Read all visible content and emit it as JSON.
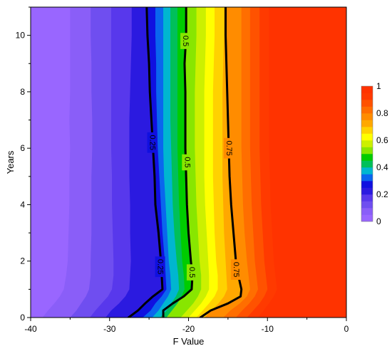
{
  "chart_data": {
    "type": "heatmap",
    "subtype": "filled-contour",
    "title": "",
    "xlabel": "F Value",
    "ylabel": "Years",
    "xlim": [
      -40,
      0
    ],
    "ylim": [
      0,
      11
    ],
    "x_ticks": [
      "-40",
      "-30",
      "-20",
      "-10",
      "0"
    ],
    "y_ticks": [
      "0",
      "2",
      "4",
      "6",
      "8",
      "10"
    ],
    "grid": false,
    "legend": {
      "placement": "right",
      "ticks": [
        "0",
        "0.2",
        "0.4",
        "0.6",
        "0.8",
        "1"
      ],
      "range": [
        0,
        1
      ]
    },
    "levels": [
      0.05,
      0.1,
      0.15,
      0.2,
      0.25,
      0.3,
      0.35,
      0.4,
      0.45,
      0.5,
      0.55,
      0.6,
      0.65,
      0.7,
      0.75,
      0.8,
      0.85,
      0.9,
      0.95
    ],
    "level_colors": [
      "#9966ff",
      "#8a5ef8",
      "#6f4ef0",
      "#5838ec",
      "#2b1ae0",
      "#1010e0",
      "#0a66ee",
      "#00b6d0",
      "#00c05a",
      "#00cc00",
      "#88e600",
      "#ccf000",
      "#ffff00",
      "#ffd200",
      "#ffa800",
      "#ff8c00",
      "#ff6e00",
      "#ff5200",
      "#ff3a00",
      "#ff3300"
    ],
    "boundaries": {
      "years": [
        0,
        0.25,
        0.5,
        0.75,
        1.0,
        1.5,
        2,
        3,
        4,
        5,
        6,
        7,
        8,
        9,
        10,
        11
      ],
      "x_by_level": [
        [
          -38.5,
          -37.8,
          -37.0,
          -36.3,
          -35.8,
          -35.5,
          -35.3,
          -35.2,
          -35.1,
          -35.1,
          -35.0,
          -35.1,
          -35.0,
          -35.0,
          -35.0,
          -35.0
        ],
        [
          -35.0,
          -34.2,
          -33.6,
          -33.0,
          -32.6,
          -32.4,
          -32.4,
          -32.3,
          -32.3,
          -32.3,
          -32.2,
          -32.2,
          -32.3,
          -32.3,
          -32.4,
          -32.4
        ],
        [
          -32.5,
          -31.8,
          -31.0,
          -30.2,
          -29.7,
          -29.5,
          -29.5,
          -29.6,
          -29.7,
          -29.7,
          -29.8,
          -29.8,
          -29.8,
          -29.8,
          -29.8,
          -29.8
        ],
        [
          -30.5,
          -29.8,
          -28.8,
          -28.0,
          -27.5,
          -27.4,
          -27.3,
          -27.4,
          -27.4,
          -27.5,
          -27.5,
          -27.5,
          -27.4,
          -27.3,
          -27.2,
          -27.2
        ],
        [
          -27.6,
          -26.4,
          -25.5,
          -24.5,
          -23.3,
          -23.4,
          -23.5,
          -23.8,
          -24.2,
          -24.3,
          -24.5,
          -24.7,
          -24.9,
          -25.0,
          -25.2,
          -25.3
        ],
        [
          -25.8,
          -24.8,
          -24.2,
          -23.4,
          -22.8,
          -22.9,
          -23.0,
          -23.3,
          -23.5,
          -23.7,
          -23.9,
          -24.0,
          -24.1,
          -24.1,
          -24.2,
          -24.2
        ],
        [
          -24.6,
          -23.8,
          -23.2,
          -22.6,
          -22.2,
          -22.3,
          -22.5,
          -22.7,
          -22.9,
          -23.1,
          -23.2,
          -23.2,
          -23.2,
          -23.2,
          -23.2,
          -23.2
        ],
        [
          -23.6,
          -22.8,
          -22.2,
          -21.6,
          -21.2,
          -21.3,
          -21.5,
          -21.8,
          -22.0,
          -22.1,
          -22.2,
          -22.3,
          -22.3,
          -22.3,
          -22.3,
          -22.3
        ],
        [
          -22.8,
          -22.1,
          -21.4,
          -20.9,
          -20.5,
          -20.6,
          -20.8,
          -21.0,
          -21.2,
          -21.3,
          -21.4,
          -21.4,
          -21.4,
          -21.4,
          -21.4,
          -21.4
        ],
        [
          -23.2,
          -23.2,
          -22.0,
          -20.6,
          -19.6,
          -19.5,
          -19.7,
          -20.0,
          -20.2,
          -20.3,
          -20.4,
          -20.4,
          -20.4,
          -20.5,
          -20.3,
          -20.3
        ],
        [
          -21.0,
          -20.2,
          -19.4,
          -18.8,
          -18.4,
          -18.4,
          -18.6,
          -18.8,
          -19.0,
          -19.1,
          -19.2,
          -19.2,
          -19.2,
          -19.1,
          -19.0,
          -19.0
        ],
        [
          -20.0,
          -19.2,
          -18.4,
          -17.8,
          -17.4,
          -17.4,
          -17.5,
          -17.7,
          -17.9,
          -18.0,
          -18.0,
          -18.0,
          -18.0,
          -17.9,
          -17.8,
          -17.8
        ],
        [
          -19.0,
          -18.2,
          -17.4,
          -16.7,
          -16.3,
          -16.3,
          -16.5,
          -16.7,
          -16.8,
          -16.9,
          -16.9,
          -16.9,
          -16.9,
          -16.8,
          -16.7,
          -16.7
        ],
        [
          -18.0,
          -17.1,
          -16.2,
          -15.5,
          -15.1,
          -15.2,
          -15.3,
          -15.5,
          -15.6,
          -15.7,
          -15.7,
          -15.7,
          -15.7,
          -15.6,
          -15.5,
          -15.5
        ],
        [
          -18.5,
          -17.2,
          -15.0,
          -13.4,
          -13.3,
          -13.7,
          -14.0,
          -14.3,
          -14.6,
          -14.8,
          -14.9,
          -15.0,
          -15.1,
          -15.2,
          -15.3,
          -15.3
        ],
        [
          -15.6,
          -14.7,
          -13.5,
          -12.6,
          -12.2,
          -12.4,
          -12.6,
          -12.9,
          -13.1,
          -13.2,
          -13.3,
          -13.3,
          -13.3,
          -13.3,
          -13.3,
          -13.3
        ],
        [
          -14.0,
          -13.2,
          -12.3,
          -11.6,
          -11.2,
          -11.4,
          -11.6,
          -11.8,
          -12.0,
          -12.1,
          -12.2,
          -12.2,
          -12.2,
          -12.2,
          -12.2,
          -12.2
        ],
        [
          -12.6,
          -11.8,
          -11.0,
          -10.4,
          -10.0,
          -10.2,
          -10.4,
          -10.6,
          -10.8,
          -10.9,
          -11.0,
          -11.0,
          -11.0,
          -11.0,
          -11.0,
          -11.0
        ],
        [
          -11.2,
          -10.5,
          -9.8,
          -9.2,
          -8.8,
          -9.0,
          -9.2,
          -9.4,
          -9.6,
          -9.7,
          -9.8,
          -9.8,
          -9.8,
          -9.8,
          -9.8,
          -9.8
        ]
      ]
    },
    "contour_lines": [
      {
        "level": "0.25",
        "points": [
          [
            -27.6,
            0
          ],
          [
            -26.4,
            0.25
          ],
          [
            -25.5,
            0.5
          ],
          [
            -24.5,
            0.75
          ],
          [
            -23.3,
            1.0
          ],
          [
            -23.4,
            1.5
          ],
          [
            -23.5,
            2
          ],
          [
            -23.8,
            3
          ],
          [
            -24.2,
            4
          ],
          [
            -24.3,
            5
          ],
          [
            -24.5,
            6
          ],
          [
            -24.7,
            7
          ],
          [
            -24.9,
            8
          ],
          [
            -25.0,
            9
          ],
          [
            -25.2,
            10
          ],
          [
            -25.3,
            11
          ]
        ],
        "labels": [
          {
            "text": "0.25",
            "x": -24.6,
            "y": 6.2
          },
          {
            "text": "0.25",
            "x": -23.6,
            "y": 1.8
          }
        ]
      },
      {
        "level": "0.5",
        "points": [
          [
            -23.2,
            0
          ],
          [
            -23.2,
            0.25
          ],
          [
            -22.0,
            0.5
          ],
          [
            -20.6,
            0.75
          ],
          [
            -19.6,
            1.0
          ],
          [
            -19.5,
            1.5
          ],
          [
            -19.7,
            2
          ],
          [
            -20.0,
            3
          ],
          [
            -20.2,
            4
          ],
          [
            -20.3,
            5
          ],
          [
            -20.4,
            6
          ],
          [
            -20.4,
            7
          ],
          [
            -20.4,
            8
          ],
          [
            -20.5,
            9
          ],
          [
            -20.3,
            10
          ],
          [
            -20.3,
            11
          ]
        ],
        "labels": [
          {
            "text": "0.5",
            "x": -20.4,
            "y": 9.8
          },
          {
            "text": "0.5",
            "x": -20.2,
            "y": 5.5
          },
          {
            "text": "0.5",
            "x": -19.6,
            "y": 1.6
          }
        ]
      },
      {
        "level": "0.75",
        "points": [
          [
            -18.5,
            0
          ],
          [
            -17.2,
            0.25
          ],
          [
            -15.0,
            0.5
          ],
          [
            -13.4,
            0.75
          ],
          [
            -13.3,
            1.0
          ],
          [
            -13.7,
            1.5
          ],
          [
            -14.0,
            2
          ],
          [
            -14.3,
            3
          ],
          [
            -14.6,
            4
          ],
          [
            -14.8,
            5
          ],
          [
            -14.9,
            6
          ],
          [
            -15.0,
            7
          ],
          [
            -15.1,
            8
          ],
          [
            -15.2,
            9
          ],
          [
            -15.3,
            10
          ],
          [
            -15.3,
            11
          ]
        ],
        "labels": [
          {
            "text": "0.75",
            "x": -14.9,
            "y": 6.0
          },
          {
            "text": "0.75",
            "x": -14.0,
            "y": 1.7
          }
        ]
      }
    ]
  }
}
